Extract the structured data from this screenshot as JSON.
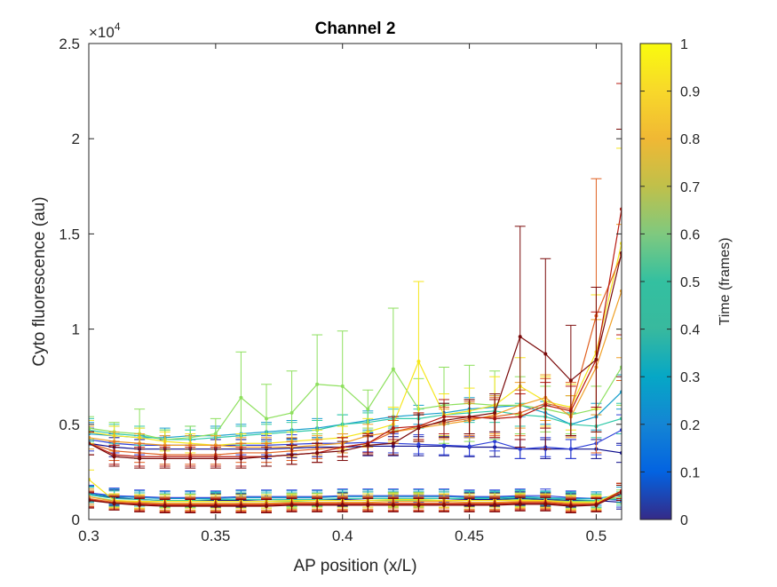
{
  "chart_data": {
    "type": "line",
    "title": "Channel 2",
    "xlabel": "AP position (x/L)",
    "ylabel": "Cyto fluorescence (au)",
    "y_exponent_label": "×10",
    "y_exponent": "4",
    "xlim": [
      0.3,
      0.51
    ],
    "ylim": [
      0,
      25000
    ],
    "x_ticks": [
      0.3,
      0.35,
      0.4,
      0.45,
      0.5
    ],
    "x_tick_labels": [
      "0.3",
      "0.35",
      "0.4",
      "0.45",
      "0.5"
    ],
    "y_ticks": [
      0,
      5000,
      10000,
      15000,
      20000,
      25000
    ],
    "y_tick_labels": [
      "0",
      "0.5",
      "1",
      "1.5",
      "2",
      "2.5"
    ],
    "grid": false,
    "error_bars": true,
    "colorbar": {
      "label": "Time (frames)",
      "colormap": "parula",
      "range": [
        0,
        1
      ],
      "ticks": [
        0,
        0.1,
        0.2,
        0.3,
        0.4,
        0.5,
        0.6,
        0.7,
        0.8,
        0.9,
        1
      ],
      "tick_labels": [
        "0",
        "0.1",
        "0.2",
        "0.3",
        "0.4",
        "0.5",
        "0.6",
        "0.7",
        "0.8",
        "0.9",
        "1"
      ]
    },
    "x": [
      0.3,
      0.31,
      0.32,
      0.33,
      0.34,
      0.35,
      0.36,
      0.37,
      0.38,
      0.39,
      0.4,
      0.41,
      0.42,
      0.43,
      0.44,
      0.45,
      0.46,
      0.47,
      0.48,
      0.49,
      0.5,
      0.51
    ],
    "series": [
      {
        "color": "#0a0a8c",
        "values": [
          4000,
          3800,
          3700,
          3700,
          3700,
          3700,
          3700,
          3700,
          3750,
          3800,
          3800,
          3850,
          3850,
          3850,
          3850,
          3800,
          3800,
          3700,
          3700,
          3700,
          3700,
          3500
        ],
        "errors": [
          600,
          500,
          500,
          500,
          500,
          500,
          500,
          500,
          500,
          500,
          500,
          500,
          500,
          500,
          500,
          500,
          500,
          500,
          500,
          500,
          500,
          500
        ]
      },
      {
        "color": "#2c3ed8",
        "values": [
          4200,
          4000,
          3900,
          3900,
          3900,
          3900,
          3900,
          3900,
          3950,
          4000,
          4000,
          4050,
          4000,
          3950,
          3900,
          3850,
          4100,
          3700,
          3800,
          3700,
          4000,
          4700
        ],
        "errors": [
          600,
          500,
          500,
          500,
          500,
          500,
          500,
          500,
          500,
          500,
          500,
          500,
          500,
          500,
          500,
          500,
          500,
          500,
          500,
          500,
          600,
          800
        ]
      },
      {
        "color": "#1aa0cc",
        "values": [
          4500,
          4400,
          4300,
          4300,
          4400,
          4400,
          4500,
          4600,
          4700,
          4800,
          5000,
          5200,
          5400,
          5500,
          5600,
          5800,
          5900,
          6000,
          5600,
          5000,
          5400,
          6700
        ],
        "errors": [
          600,
          500,
          500,
          500,
          500,
          500,
          500,
          500,
          500,
          500,
          500,
          500,
          500,
          500,
          500,
          600,
          600,
          600,
          600,
          600,
          700,
          900
        ]
      },
      {
        "color": "#2fc9a8",
        "values": [
          4700,
          4500,
          4400,
          4200,
          4200,
          4300,
          4400,
          4500,
          4600,
          4700,
          5000,
          5100,
          5300,
          5300,
          5500,
          5600,
          5700,
          5500,
          5400,
          5000,
          4900,
          5300
        ],
        "errors": [
          600,
          500,
          500,
          500,
          500,
          500,
          500,
          500,
          500,
          500,
          500,
          500,
          500,
          500,
          500,
          500,
          600,
          600,
          600,
          600,
          600,
          800
        ]
      },
      {
        "color": "#8ee05e",
        "values": [
          4800,
          4600,
          4500,
          4200,
          4300,
          4500,
          6400,
          5300,
          5600,
          7100,
          7000,
          5800,
          7900,
          5800,
          6000,
          6100,
          6000,
          6000,
          5800,
          5500,
          5800,
          8000
        ],
        "errors": [
          600,
          500,
          1300,
          500,
          600,
          800,
          2400,
          1800,
          2200,
          2600,
          2900,
          1000,
          3200,
          1600,
          2000,
          2000,
          1800,
          1500,
          1200,
          1000,
          1200,
          2000
        ]
      },
      {
        "color": "#f5e61c",
        "values": [
          4600,
          4400,
          4300,
          4100,
          4000,
          3900,
          4000,
          4000,
          4100,
          4200,
          4300,
          4600,
          5000,
          8300,
          5500,
          5700,
          6000,
          7000,
          6200,
          5900,
          8800,
          14500
        ],
        "errors": [
          600,
          500,
          500,
          500,
          500,
          500,
          500,
          500,
          500,
          500,
          600,
          700,
          900,
          4200,
          1100,
          1200,
          1500,
          1500,
          1300,
          1200,
          3000,
          5000
        ]
      },
      {
        "color": "#f0a026",
        "values": [
          4300,
          4100,
          4000,
          3900,
          3900,
          3900,
          3800,
          3800,
          3800,
          3900,
          4000,
          4400,
          4600,
          4800,
          5000,
          5200,
          5500,
          6000,
          6400,
          5400,
          8000,
          12000
        ],
        "errors": [
          600,
          500,
          500,
          500,
          500,
          500,
          500,
          500,
          500,
          500,
          500,
          600,
          600,
          700,
          800,
          900,
          1000,
          1200,
          1200,
          1100,
          2500,
          3500
        ]
      },
      {
        "color": "#e06020",
        "values": [
          4000,
          3600,
          3500,
          3400,
          3400,
          3400,
          3500,
          3500,
          3600,
          3700,
          3800,
          4000,
          4600,
          4900,
          5100,
          5300,
          5400,
          5600,
          6100,
          5800,
          10700,
          13900
        ],
        "errors": [
          600,
          500,
          500,
          500,
          500,
          500,
          500,
          500,
          500,
          500,
          500,
          500,
          600,
          700,
          800,
          900,
          1000,
          1200,
          1300,
          1400,
          7200,
          6600
        ]
      },
      {
        "color": "#b81a12",
        "values": [
          4000,
          3400,
          3300,
          3300,
          3300,
          3300,
          3300,
          3300,
          3400,
          3500,
          3800,
          4000,
          4800,
          4900,
          5400,
          5400,
          5300,
          5400,
          6000,
          5700,
          8400,
          16300
        ],
        "errors": [
          600,
          500,
          500,
          500,
          500,
          500,
          500,
          500,
          500,
          500,
          500,
          500,
          600,
          700,
          900,
          900,
          1000,
          1200,
          1200,
          1300,
          2500,
          6600
        ]
      },
      {
        "color": "#7a0a0a",
        "values": [
          4000,
          3300,
          3200,
          3200,
          3200,
          3200,
          3200,
          3300,
          3400,
          3500,
          3600,
          3900,
          4000,
          4800,
          5200,
          5400,
          5600,
          9600,
          8700,
          7300,
          8400,
          14000
        ],
        "errors": [
          600,
          500,
          500,
          500,
          500,
          500,
          500,
          500,
          500,
          500,
          500,
          500,
          600,
          700,
          900,
          900,
          1000,
          5800,
          5000,
          2900,
          3800,
          6500
        ]
      },
      {
        "color": "#0a0a8c",
        "values": [
          1300,
          1150,
          1050,
          1000,
          1000,
          1000,
          1000,
          1050,
          1050,
          1050,
          1050,
          1100,
          1100,
          1100,
          1100,
          1050,
          1050,
          1100,
          1050,
          1000,
          1000,
          900
        ],
        "errors": [
          400,
          400,
          350,
          350,
          350,
          350,
          350,
          350,
          350,
          350,
          350,
          350,
          350,
          350,
          350,
          350,
          350,
          350,
          350,
          350,
          350,
          350
        ]
      },
      {
        "color": "#2c3ed8",
        "values": [
          1400,
          1250,
          1200,
          1150,
          1150,
          1150,
          1200,
          1200,
          1200,
          1200,
          1250,
          1250,
          1250,
          1250,
          1250,
          1200,
          1200,
          1250,
          1250,
          1150,
          1100,
          1000
        ],
        "errors": [
          400,
          400,
          350,
          350,
          350,
          350,
          350,
          350,
          350,
          350,
          350,
          350,
          350,
          350,
          350,
          350,
          350,
          350,
          350,
          350,
          350,
          350
        ]
      },
      {
        "color": "#1aa0cc",
        "values": [
          1350,
          1200,
          1150,
          1100,
          1100,
          1100,
          1150,
          1150,
          1150,
          1150,
          1200,
          1200,
          1200,
          1200,
          1200,
          1150,
          1150,
          1200,
          1150,
          1100,
          1100,
          1300
        ],
        "errors": [
          400,
          400,
          350,
          350,
          350,
          350,
          350,
          350,
          350,
          350,
          350,
          350,
          350,
          350,
          350,
          350,
          350,
          350,
          350,
          350,
          350,
          400
        ]
      },
      {
        "color": "#2fc9a8",
        "values": [
          1300,
          1100,
          1050,
          1000,
          1000,
          1050,
          1050,
          1050,
          1050,
          1050,
          1100,
          1100,
          1100,
          1100,
          1100,
          1100,
          1100,
          1150,
          1100,
          1050,
          1000,
          1100
        ],
        "errors": [
          400,
          400,
          350,
          350,
          350,
          350,
          350,
          350,
          350,
          350,
          350,
          350,
          350,
          350,
          350,
          350,
          350,
          350,
          350,
          350,
          350,
          350
        ]
      },
      {
        "color": "#8ee05e",
        "values": [
          1200,
          1000,
          950,
          950,
          950,
          950,
          950,
          950,
          950,
          1000,
          1000,
          1000,
          1000,
          1000,
          1000,
          1000,
          1000,
          1050,
          1000,
          950,
          950,
          1200
        ],
        "errors": [
          400,
          350,
          350,
          350,
          350,
          350,
          350,
          350,
          350,
          350,
          350,
          350,
          350,
          350,
          350,
          350,
          350,
          350,
          350,
          350,
          350,
          350
        ]
      },
      {
        "color": "#f5e61c",
        "values": [
          2100,
          1000,
          950,
          950,
          950,
          950,
          950,
          950,
          1000,
          1000,
          1000,
          1000,
          1050,
          1050,
          1000,
          1000,
          1000,
          1000,
          1000,
          900,
          900,
          1500
        ],
        "errors": [
          500,
          350,
          350,
          350,
          350,
          350,
          350,
          350,
          350,
          350,
          350,
          350,
          350,
          350,
          350,
          350,
          350,
          350,
          350,
          350,
          350,
          400
        ]
      },
      {
        "color": "#f0a026",
        "values": [
          1200,
          950,
          900,
          850,
          850,
          850,
          850,
          850,
          900,
          900,
          900,
          900,
          950,
          950,
          950,
          900,
          900,
          950,
          950,
          850,
          850,
          1400
        ],
        "errors": [
          400,
          350,
          350,
          350,
          350,
          350,
          350,
          350,
          350,
          350,
          350,
          350,
          350,
          350,
          350,
          350,
          350,
          350,
          350,
          350,
          350,
          400
        ]
      },
      {
        "color": "#e06020",
        "values": [
          1100,
          900,
          850,
          800,
          800,
          800,
          800,
          800,
          850,
          850,
          850,
          850,
          850,
          850,
          850,
          850,
          850,
          900,
          900,
          800,
          800,
          1500
        ],
        "errors": [
          400,
          350,
          350,
          350,
          350,
          350,
          350,
          350,
          350,
          350,
          350,
          350,
          350,
          350,
          350,
          350,
          350,
          350,
          350,
          350,
          350,
          400
        ]
      },
      {
        "color": "#b81a12",
        "values": [
          1050,
          850,
          800,
          750,
          750,
          750,
          750,
          750,
          800,
          800,
          800,
          800,
          800,
          800,
          800,
          800,
          800,
          850,
          850,
          750,
          800,
          1500
        ],
        "errors": [
          400,
          350,
          350,
          350,
          350,
          350,
          350,
          350,
          350,
          350,
          350,
          350,
          350,
          350,
          350,
          350,
          350,
          350,
          350,
          350,
          350,
          400
        ]
      },
      {
        "color": "#7a0a0a",
        "values": [
          1000,
          850,
          750,
          700,
          700,
          700,
          700,
          700,
          750,
          750,
          750,
          750,
          750,
          750,
          750,
          750,
          750,
          800,
          800,
          700,
          750,
          1400
        ],
        "errors": [
          400,
          350,
          350,
          350,
          350,
          350,
          350,
          350,
          350,
          350,
          350,
          350,
          350,
          350,
          350,
          350,
          350,
          350,
          350,
          350,
          350,
          400
        ]
      }
    ]
  }
}
